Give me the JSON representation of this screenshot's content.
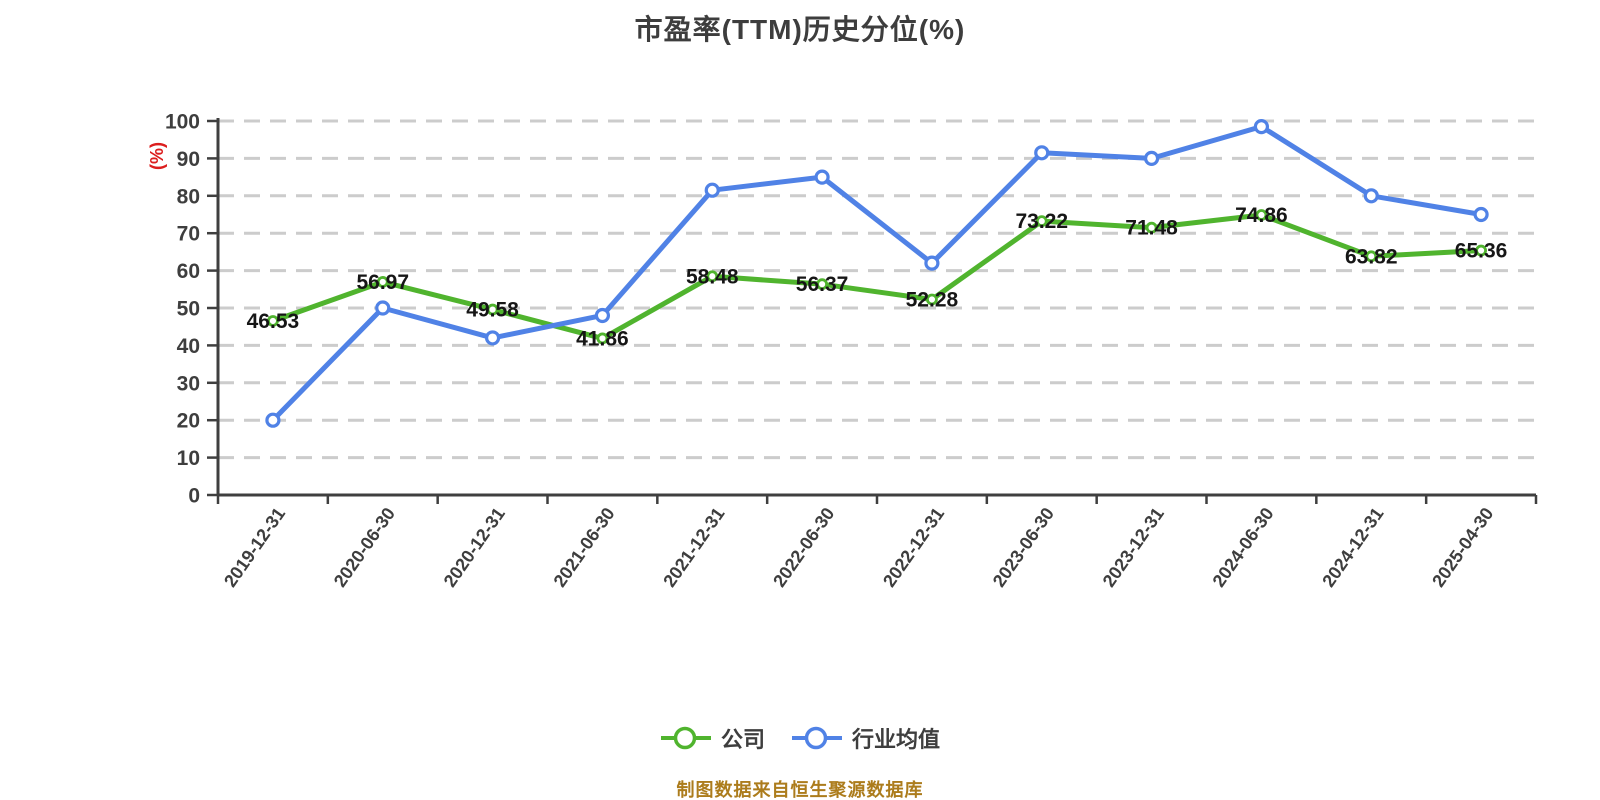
{
  "chart": {
    "title": "市盈率(TTM)历史分位(%)",
    "source_note": "制图数据来自恒生聚源数据库"
  },
  "colors": {
    "company_green": "#50b42e",
    "industry_blue": "#5082e6",
    "axis_line": "#3f3f3f",
    "axis_text": "#3e3e3e",
    "data_label": "#161616",
    "grid_line": "#cccccc",
    "y_axis_name_red": "#dc1e1e",
    "source_note_gold": "#ac7c1c",
    "marker_fill": "#ffffff"
  },
  "chart_data": {
    "type": "line",
    "title": "市盈率(TTM)历史分位(%)",
    "categories": [
      "2019-12-31",
      "2020-06-30",
      "2020-12-31",
      "2021-06-30",
      "2021-12-31",
      "2022-06-30",
      "2022-12-31",
      "2023-06-30",
      "2023-12-31",
      "2024-06-30",
      "2024-12-31",
      "2025-04-30"
    ],
    "series": [
      {
        "name": "公司",
        "color": "#50b42e",
        "values": [
          46.53,
          56.97,
          49.58,
          41.86,
          58.48,
          56.37,
          52.28,
          73.22,
          71.48,
          74.86,
          63.82,
          65.36
        ],
        "data_labels": true
      },
      {
        "name": "行业均值",
        "color": "#5082e6",
        "values": [
          20,
          50,
          42,
          48,
          81.5,
          85,
          62,
          91.5,
          90,
          98.5,
          80,
          75
        ],
        "data_labels": false
      }
    ],
    "xlabel": "",
    "ylabel": "(%)",
    "ylim": [
      0,
      100
    ],
    "y_tick_step": 10,
    "grid": "horizontal-dashed",
    "legend_position": "bottom",
    "x_label_rotation": -55,
    "source_note": "制图数据来自恒生聚源数据库"
  }
}
